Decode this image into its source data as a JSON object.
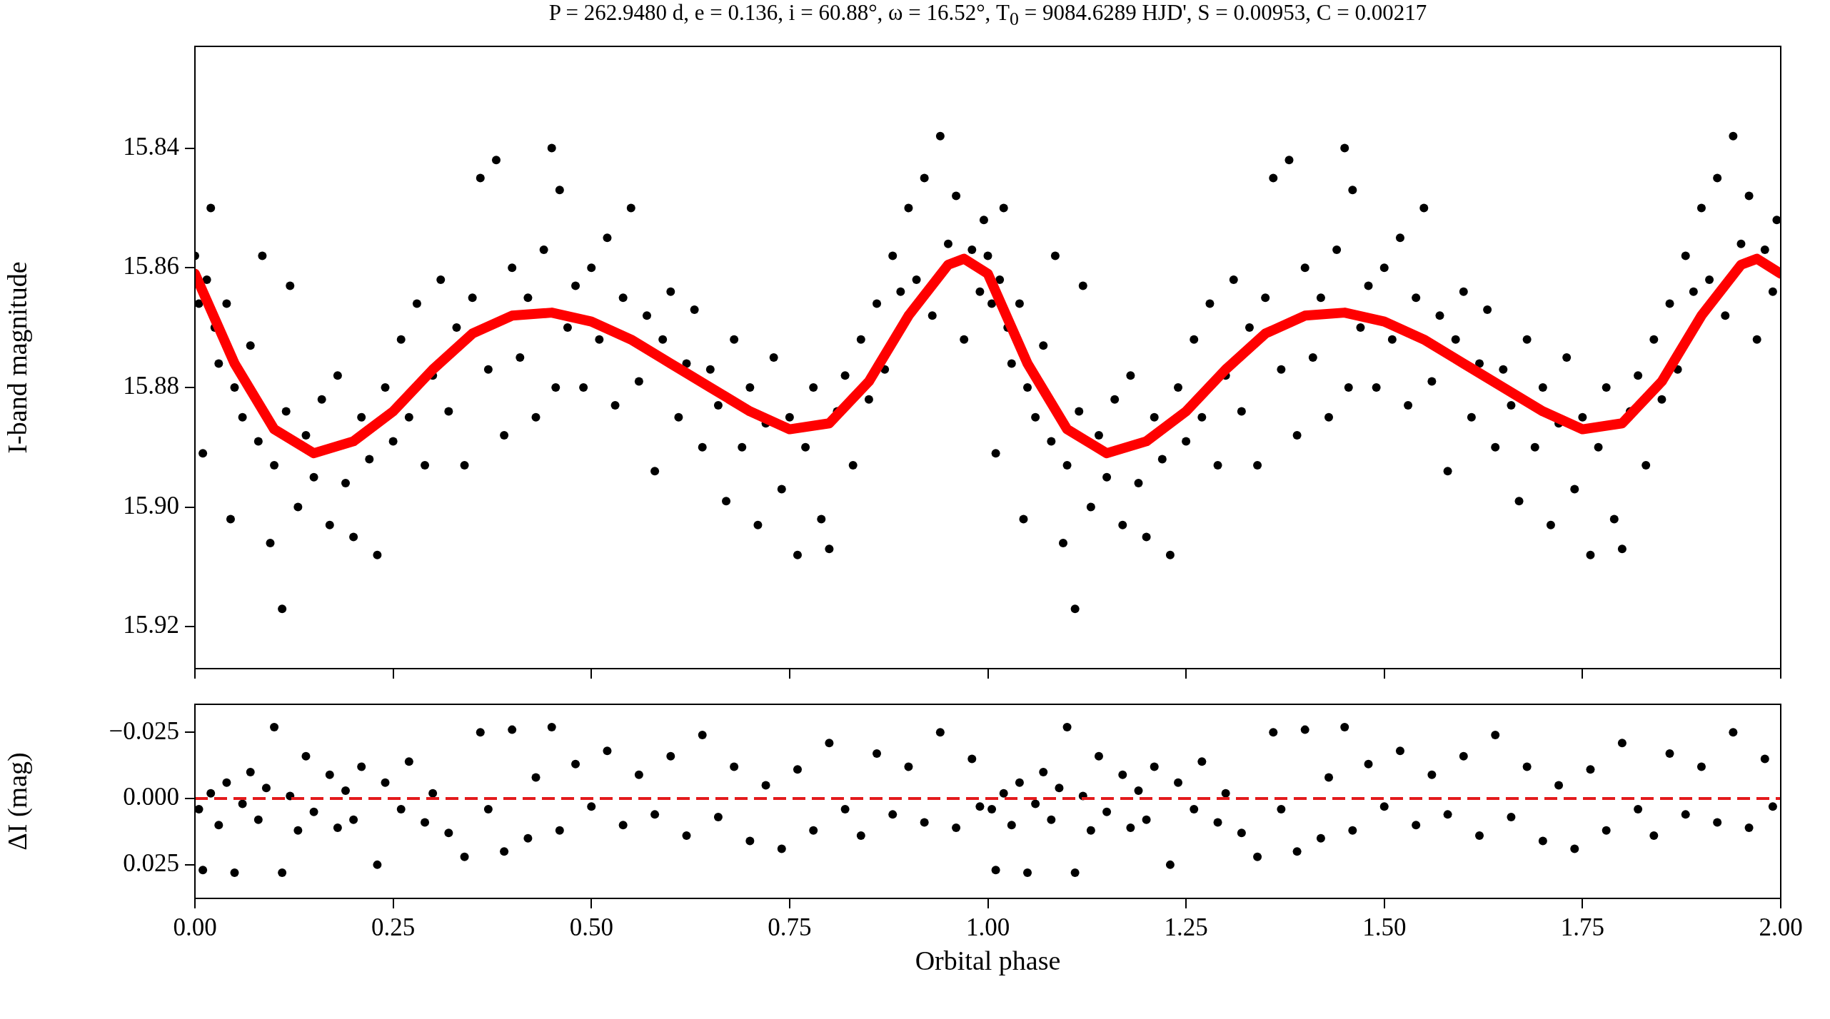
{
  "chart_data": [
    {
      "type": "scatter",
      "title": "P = 262.9480 d, e = 0.136, i = 60.88°, ω = 16.52°, T$_{0}$ = 9084.6289 HJD', S = 0.00953, C = 0.00217",
      "ylabel": "I-band magnitude",
      "marker": "circle",
      "tick_labels": "y",
      "xlim": [
        0,
        2
      ],
      "xticks": [
        {
          "value": 0,
          "label": null
        },
        {
          "value": 0.25,
          "label": null
        },
        {
          "value": 0.5,
          "label": null
        },
        {
          "value": 0.75,
          "label": null
        },
        {
          "value": 1,
          "label": null
        },
        {
          "value": 1.25,
          "label": null
        },
        {
          "value": 1.5,
          "label": null
        },
        {
          "value": 1.75,
          "label": null
        },
        {
          "value": 2,
          "label": null
        }
      ],
      "ylim": [
        15.927,
        15.823
      ],
      "yticks": [
        {
          "value": 15.84,
          "label": "15.84"
        },
        {
          "value": 15.86,
          "label": "15.86"
        },
        {
          "value": 15.88,
          "label": "15.88"
        },
        {
          "value": 15.9,
          "label": "15.90"
        },
        {
          "value": 15.92,
          "label": "15.92"
        }
      ],
      "series": [
        {
          "type": "scatter",
          "color": "#000000",
          "x": [
            0,
            0.005,
            0.01,
            0.015,
            0.02,
            0.025,
            0.03,
            0.04,
            0.045,
            0.05,
            0.06,
            0.07,
            0.08,
            0.085,
            0.095,
            0.1,
            0.11,
            0.115,
            0.12,
            0.13,
            0.14,
            0.15,
            0.16,
            0.17,
            0.18,
            0.19,
            0.2,
            0.21,
            0.22,
            0.23,
            0.24,
            0.25,
            0.26,
            0.27,
            0.28,
            0.29,
            0.3,
            0.31,
            0.32,
            0.33,
            0.34,
            0.35,
            0.36,
            0.37,
            0.38,
            0.39,
            0.4,
            0.41,
            0.42,
            0.43,
            0.44,
            0.45,
            0.455,
            0.46,
            0.47,
            0.48,
            0.49,
            0.5,
            0.51,
            0.52,
            0.53,
            0.54,
            0.55,
            0.56,
            0.57,
            0.58,
            0.59,
            0.6,
            0.61,
            0.62,
            0.63,
            0.64,
            0.65,
            0.66,
            0.67,
            0.68,
            0.69,
            0.7,
            0.71,
            0.72,
            0.73,
            0.74,
            0.75,
            0.76,
            0.77,
            0.78,
            0.79,
            0.8,
            0.81,
            0.82,
            0.83,
            0.84,
            0.85,
            0.86,
            0.87,
            0.88,
            0.89,
            0.9,
            0.91,
            0.92,
            0.93,
            0.94,
            0.95,
            0.96,
            0.97,
            0.98,
            0.99,
            0.995,
            1,
            1.005,
            1.01,
            1.015,
            1.02,
            1.025,
            1.03,
            1.04,
            1.045,
            1.05,
            1.06,
            1.07,
            1.08,
            1.085,
            1.095,
            1.1,
            1.11,
            1.115,
            1.12,
            1.13,
            1.14,
            1.15,
            1.16,
            1.17,
            1.18,
            1.19,
            1.2,
            1.21,
            1.22,
            1.23,
            1.24,
            1.25,
            1.26,
            1.27,
            1.28,
            1.29,
            1.3,
            1.31,
            1.32,
            1.33,
            1.34,
            1.35,
            1.36,
            1.37,
            1.38,
            1.39,
            1.4,
            1.41,
            1.42,
            1.43,
            1.44,
            1.45,
            1.455,
            1.46,
            1.47,
            1.48,
            1.49,
            1.5,
            1.51,
            1.52,
            1.53,
            1.54,
            1.55,
            1.56,
            1.57,
            1.58,
            1.59,
            1.6,
            1.61,
            1.62,
            1.63,
            1.64,
            1.65,
            1.66,
            1.67,
            1.68,
            1.69,
            1.7,
            1.71,
            1.72,
            1.73,
            1.74,
            1.75,
            1.76,
            1.77,
            1.78,
            1.79,
            1.8,
            1.81,
            1.82,
            1.83,
            1.84,
            1.85,
            1.86,
            1.87,
            1.88,
            1.89,
            1.9,
            1.91,
            1.92,
            1.93,
            1.94,
            1.95,
            1.96,
            1.97,
            1.98,
            1.99,
            1.995
          ],
          "values": [
            15.858,
            15.866,
            15.891,
            15.862,
            15.85,
            15.87,
            15.876,
            15.866,
            15.902,
            15.88,
            15.885,
            15.873,
            15.889,
            15.858,
            15.906,
            15.893,
            15.917,
            15.884,
            15.863,
            15.9,
            15.888,
            15.895,
            15.882,
            15.903,
            15.878,
            15.896,
            15.905,
            15.885,
            15.892,
            15.908,
            15.88,
            15.889,
            15.872,
            15.885,
            15.866,
            15.893,
            15.878,
            15.862,
            15.884,
            15.87,
            15.893,
            15.865,
            15.845,
            15.877,
            15.842,
            15.888,
            15.86,
            15.875,
            15.865,
            15.885,
            15.857,
            15.84,
            15.88,
            15.847,
            15.87,
            15.863,
            15.88,
            15.86,
            15.872,
            15.855,
            15.883,
            15.865,
            15.85,
            15.879,
            15.868,
            15.894,
            15.872,
            15.864,
            15.885,
            15.876,
            15.867,
            15.89,
            15.877,
            15.883,
            15.899,
            15.872,
            15.89,
            15.88,
            15.903,
            15.886,
            15.875,
            15.897,
            15.885,
            15.908,
            15.89,
            15.88,
            15.902,
            15.907,
            15.884,
            15.878,
            15.893,
            15.872,
            15.882,
            15.866,
            15.877,
            15.858,
            15.864,
            15.85,
            15.862,
            15.845,
            15.868,
            15.838,
            15.856,
            15.848,
            15.872,
            15.857,
            15.864,
            15.852,
            15.858,
            15.866,
            15.891,
            15.862,
            15.85,
            15.87,
            15.876,
            15.866,
            15.902,
            15.88,
            15.885,
            15.873,
            15.889,
            15.858,
            15.906,
            15.893,
            15.917,
            15.884,
            15.863,
            15.9,
            15.888,
            15.895,
            15.882,
            15.903,
            15.878,
            15.896,
            15.905,
            15.885,
            15.892,
            15.908,
            15.88,
            15.889,
            15.872,
            15.885,
            15.866,
            15.893,
            15.878,
            15.862,
            15.884,
            15.87,
            15.893,
            15.865,
            15.845,
            15.877,
            15.842,
            15.888,
            15.86,
            15.875,
            15.865,
            15.885,
            15.857,
            15.84,
            15.88,
            15.847,
            15.87,
            15.863,
            15.88,
            15.86,
            15.872,
            15.855,
            15.883,
            15.865,
            15.85,
            15.879,
            15.868,
            15.894,
            15.872,
            15.864,
            15.885,
            15.876,
            15.867,
            15.89,
            15.877,
            15.883,
            15.899,
            15.872,
            15.89,
            15.88,
            15.903,
            15.886,
            15.875,
            15.897,
            15.885,
            15.908,
            15.89,
            15.88,
            15.902,
            15.907,
            15.884,
            15.878,
            15.893,
            15.872,
            15.882,
            15.866,
            15.877,
            15.858,
            15.864,
            15.85,
            15.862,
            15.845,
            15.868,
            15.838,
            15.856,
            15.848,
            15.872,
            15.857,
            15.864,
            15.852
          ]
        },
        {
          "type": "line",
          "color": "#ff0000",
          "marker": "none",
          "x": [
            0,
            0.05,
            0.1,
            0.15,
            0.2,
            0.25,
            0.3,
            0.35,
            0.4,
            0.45,
            0.5,
            0.55,
            0.6,
            0.65,
            0.7,
            0.75,
            0.8,
            0.85,
            0.9,
            0.95,
            0.97,
            1,
            1.05,
            1.1,
            1.15,
            1.2,
            1.25,
            1.3,
            1.35,
            1.4,
            1.45,
            1.5,
            1.55,
            1.6,
            1.65,
            1.7,
            1.75,
            1.8,
            1.85,
            1.9,
            1.95,
            1.97,
            2
          ],
          "values": [
            15.861,
            15.876,
            15.887,
            15.891,
            15.889,
            15.884,
            15.877,
            15.871,
            15.868,
            15.8675,
            15.869,
            15.872,
            15.876,
            15.88,
            15.884,
            15.887,
            15.886,
            15.879,
            15.868,
            15.8595,
            15.8585,
            15.861,
            15.876,
            15.887,
            15.891,
            15.889,
            15.884,
            15.877,
            15.871,
            15.868,
            15.8675,
            15.869,
            15.872,
            15.876,
            15.88,
            15.884,
            15.887,
            15.886,
            15.879,
            15.868,
            15.8595,
            15.8585,
            15.861
          ]
        }
      ]
    },
    {
      "type": "scatter",
      "xlabel": "Orbital phase",
      "ylabel": "ΔI (mag)",
      "marker": "circle",
      "xlim": [
        0,
        2
      ],
      "xticks": [
        {
          "value": 0,
          "label": "0.00"
        },
        {
          "value": 0.25,
          "label": "0.25"
        },
        {
          "value": 0.5,
          "label": "0.50"
        },
        {
          "value": 0.75,
          "label": "0.75"
        },
        {
          "value": 1,
          "label": "1.00"
        },
        {
          "value": 1.25,
          "label": "1.25"
        },
        {
          "value": 1.5,
          "label": "1.50"
        },
        {
          "value": 1.75,
          "label": "1.75"
        },
        {
          "value": 2,
          "label": "2.00"
        }
      ],
      "ylim": [
        0.0377,
        -0.0356
      ],
      "yticks": [
        {
          "value": -0.025,
          "label": "−0.025"
        },
        {
          "value": 0,
          "label": "0.000"
        },
        {
          "value": 0.025,
          "label": "0.025"
        }
      ],
      "ref_lines": [
        {
          "axis": "y",
          "value": 0,
          "color": "#e41a1c",
          "line_style": "dashed"
        }
      ],
      "series": [
        {
          "type": "scatter",
          "color": "#000000",
          "x": [
            0.005,
            0.01,
            0.02,
            0.03,
            0.04,
            0.05,
            0.06,
            0.07,
            0.08,
            0.09,
            0.1,
            0.11,
            0.12,
            0.13,
            0.14,
            0.15,
            0.17,
            0.18,
            0.19,
            0.2,
            0.21,
            0.23,
            0.24,
            0.26,
            0.27,
            0.29,
            0.3,
            0.32,
            0.34,
            0.36,
            0.37,
            0.39,
            0.4,
            0.42,
            0.43,
            0.45,
            0.46,
            0.48,
            0.5,
            0.52,
            0.54,
            0.56,
            0.58,
            0.6,
            0.62,
            0.64,
            0.66,
            0.68,
            0.7,
            0.72,
            0.74,
            0.76,
            0.78,
            0.8,
            0.82,
            0.84,
            0.86,
            0.88,
            0.9,
            0.92,
            0.94,
            0.96,
            0.98,
            0.99,
            1.005,
            1.01,
            1.02,
            1.03,
            1.04,
            1.05,
            1.06,
            1.07,
            1.08,
            1.09,
            1.1,
            1.11,
            1.12,
            1.13,
            1.14,
            1.15,
            1.17,
            1.18,
            1.19,
            1.2,
            1.21,
            1.23,
            1.24,
            1.26,
            1.27,
            1.29,
            1.3,
            1.32,
            1.34,
            1.36,
            1.37,
            1.39,
            1.4,
            1.42,
            1.43,
            1.45,
            1.46,
            1.48,
            1.5,
            1.52,
            1.54,
            1.56,
            1.58,
            1.6,
            1.62,
            1.64,
            1.66,
            1.68,
            1.7,
            1.72,
            1.74,
            1.76,
            1.78,
            1.8,
            1.82,
            1.84,
            1.86,
            1.88,
            1.9,
            1.92,
            1.94,
            1.96,
            1.98,
            1.99
          ],
          "values": [
            0.004,
            0.027,
            -0.002,
            0.01,
            -0.006,
            0.028,
            0.002,
            -0.01,
            0.008,
            -0.004,
            -0.027,
            0.028,
            -0.001,
            0.012,
            -0.016,
            0.005,
            -0.009,
            0.011,
            -0.003,
            0.008,
            -0.012,
            0.025,
            -0.006,
            0.004,
            -0.014,
            0.009,
            -0.002,
            0.013,
            0.022,
            -0.025,
            0.004,
            0.02,
            -0.026,
            0.015,
            -0.008,
            -0.027,
            0.012,
            -0.013,
            0.003,
            -0.018,
            0.01,
            -0.009,
            0.006,
            -0.016,
            0.014,
            -0.024,
            0.007,
            -0.012,
            0.016,
            -0.005,
            0.019,
            -0.011,
            0.012,
            -0.021,
            0.004,
            0.014,
            -0.017,
            0.006,
            -0.012,
            0.009,
            -0.025,
            0.011,
            -0.015,
            0.003,
            0.004,
            0.027,
            -0.002,
            0.01,
            -0.006,
            0.028,
            0.002,
            -0.01,
            0.008,
            -0.004,
            -0.027,
            0.028,
            -0.001,
            0.012,
            -0.016,
            0.005,
            -0.009,
            0.011,
            -0.003,
            0.008,
            -0.012,
            0.025,
            -0.006,
            0.004,
            -0.014,
            0.009,
            -0.002,
            0.013,
            0.022,
            -0.025,
            0.004,
            0.02,
            -0.026,
            0.015,
            -0.008,
            -0.027,
            0.012,
            -0.013,
            0.003,
            -0.018,
            0.01,
            -0.009,
            0.006,
            -0.016,
            0.014,
            -0.024,
            0.007,
            -0.012,
            0.016,
            -0.005,
            0.019,
            -0.011,
            0.012,
            -0.021,
            0.004,
            0.014,
            -0.017,
            0.006,
            -0.012,
            0.009,
            -0.025,
            0.011,
            -0.015,
            0.003
          ]
        }
      ]
    }
  ]
}
